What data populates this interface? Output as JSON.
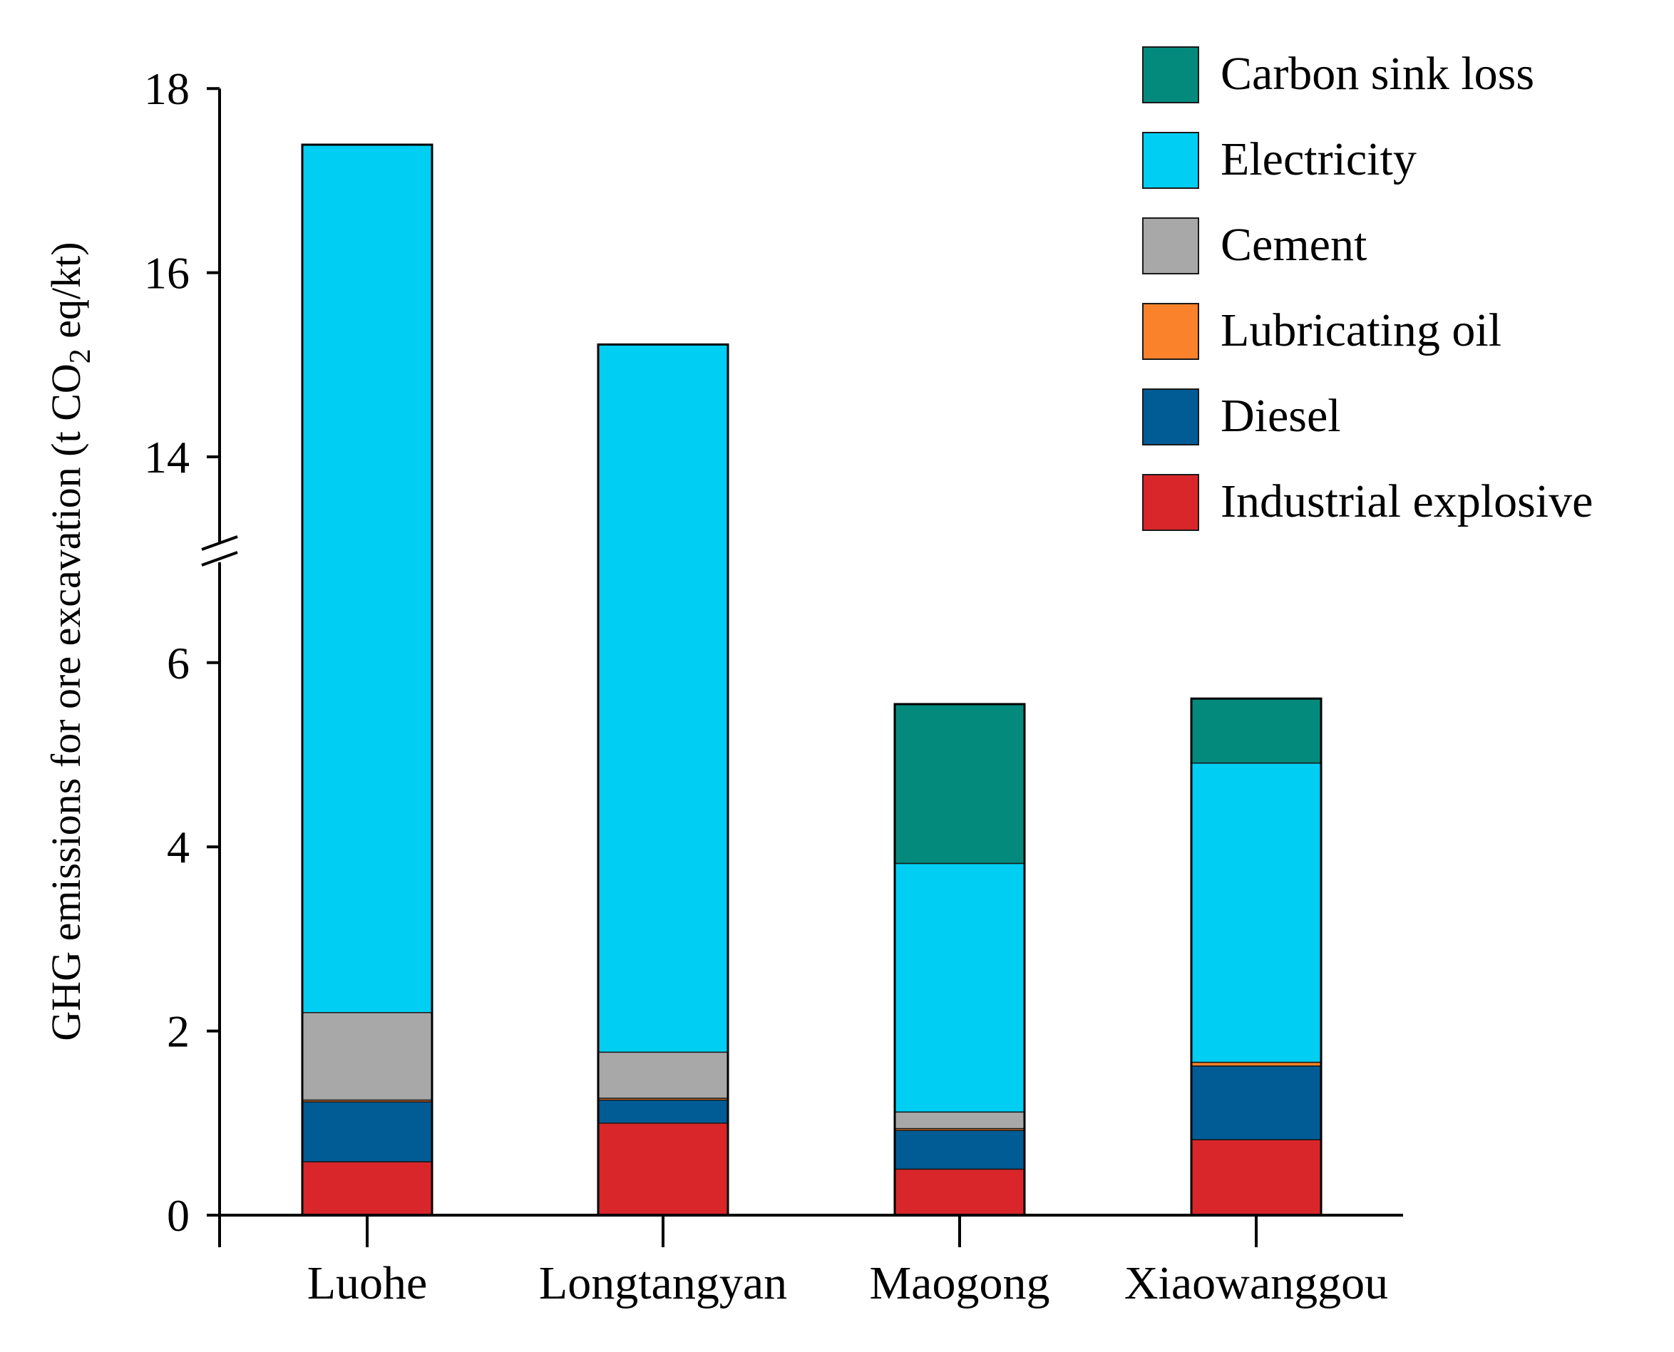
{
  "chart_data": {
    "type": "bar",
    "stacked": true,
    "title": "",
    "xlabel": "",
    "ylabel": "GHG emissions for ore excavation (t CO₂ eq/kt)",
    "ylabel_parts": [
      "GHG emissions for ore excavation (t CO",
      "2",
      " eq/kt)"
    ],
    "axis_break": {
      "lower": [
        0,
        7
      ],
      "upper": [
        13,
        18
      ]
    },
    "yticks_lower": [
      0,
      2,
      4,
      6
    ],
    "yticks_upper": [
      14,
      16,
      18
    ],
    "ytick_labels_lower": [
      "0",
      "2",
      "4",
      "6"
    ],
    "ytick_labels_upper": [
      "14",
      "16",
      "18"
    ],
    "categories": [
      "Luohe",
      "Longtangyan",
      "Maogong",
      "Xiaowanggou"
    ],
    "legend_position": "top-right",
    "series": [
      {
        "name": "Industrial explosive",
        "color": "#d8262a",
        "values": [
          0.58,
          1.0,
          0.5,
          0.82
        ]
      },
      {
        "name": "Diesel",
        "color": "#015c96",
        "values": [
          0.65,
          0.25,
          0.42,
          0.8
        ]
      },
      {
        "name": "Lubricating oil",
        "color": "#f9822a",
        "values": [
          0.02,
          0.02,
          0.02,
          0.04
        ]
      },
      {
        "name": "Cement",
        "color": "#a8a8a8",
        "values": [
          0.95,
          0.5,
          0.18,
          0.0
        ]
      },
      {
        "name": "Electricity",
        "color": "#00cef3",
        "values": [
          15.19,
          13.45,
          2.7,
          3.25
        ]
      },
      {
        "name": "Carbon sink loss",
        "color": "#038a7d",
        "values": [
          0.0,
          0.0,
          1.73,
          0.7
        ]
      }
    ],
    "legend_order": [
      "Carbon sink loss",
      "Electricity",
      "Cement",
      "Lubricating oil",
      "Diesel",
      "Industrial explosive"
    ]
  }
}
